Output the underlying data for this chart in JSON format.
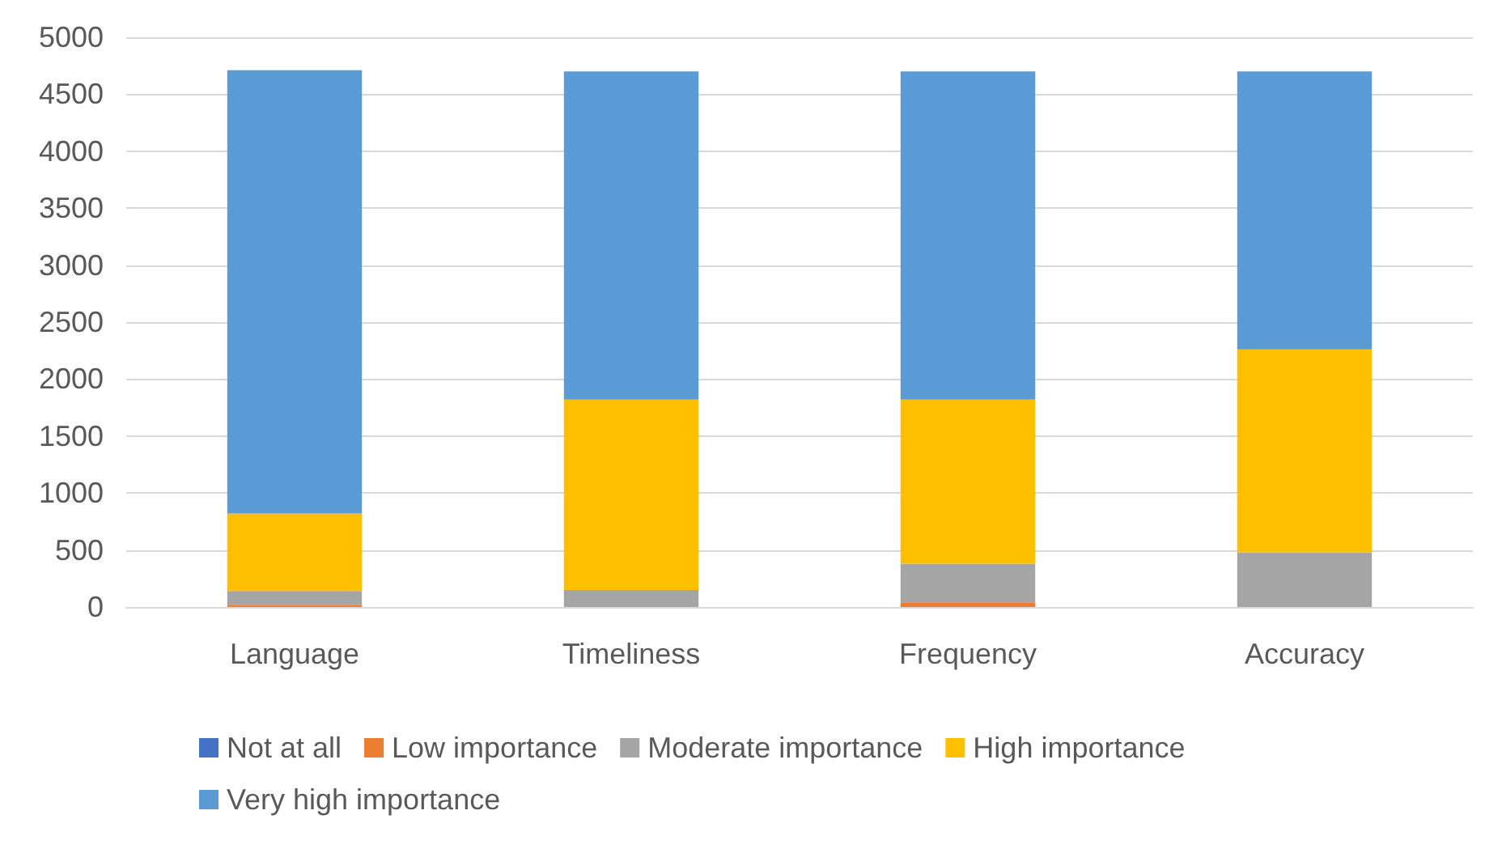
{
  "chart_data": {
    "type": "bar",
    "stacked": true,
    "categories": [
      "Language",
      "Timeliness",
      "Frequency",
      "Accuracy"
    ],
    "series": [
      {
        "name": "Not at all",
        "color": "#4472c4",
        "values": [
          0,
          0,
          0,
          0
        ]
      },
      {
        "name": "Low importance",
        "color": "#ed7d31",
        "values": [
          20,
          0,
          40,
          0
        ]
      },
      {
        "name": "Moderate importance",
        "color": "#a5a5a5",
        "values": [
          120,
          150,
          340,
          480
        ]
      },
      {
        "name": "High importance",
        "color": "#ffc000",
        "values": [
          680,
          1670,
          1440,
          1780
        ]
      },
      {
        "name": "Very high importance",
        "color": "#5b9bd5",
        "values": [
          3890,
          2880,
          2880,
          2440
        ]
      }
    ],
    "ylim": [
      0,
      5000
    ],
    "yticks": [
      0,
      500,
      1000,
      1500,
      2000,
      2500,
      3000,
      3500,
      4000,
      4500,
      5000
    ],
    "grid": "y",
    "legend": "bottom"
  }
}
